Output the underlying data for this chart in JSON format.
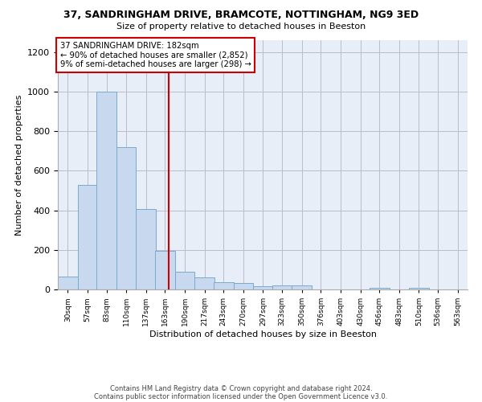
{
  "title1": "37, SANDRINGHAM DRIVE, BRAMCOTE, NOTTINGHAM, NG9 3ED",
  "title2": "Size of property relative to detached houses in Beeston",
  "xlabel": "Distribution of detached houses by size in Beeston",
  "ylabel": "Number of detached properties",
  "footnote1": "Contains HM Land Registry data © Crown copyright and database right 2024.",
  "footnote2": "Contains public sector information licensed under the Open Government Licence v3.0.",
  "annotation_line1": "37 SANDRINGHAM DRIVE: 182sqm",
  "annotation_line2": "← 90% of detached houses are smaller (2,852)",
  "annotation_line3": "9% of semi-detached houses are larger (298) →",
  "property_size": 182,
  "bar_color": "#c8d8ee",
  "bar_edge_color": "#7aabcc",
  "vline_color": "#cc0000",
  "annotation_box_color": "#cc0000",
  "background_color": "#e8eef8",
  "bins": [
    30,
    57,
    83,
    110,
    137,
    163,
    190,
    217,
    243,
    270,
    297,
    323,
    350,
    376,
    403,
    430,
    456,
    483,
    510,
    536,
    563
  ],
  "counts": [
    65,
    527,
    1000,
    718,
    408,
    197,
    88,
    60,
    37,
    33,
    18,
    20,
    20,
    0,
    0,
    0,
    10,
    0,
    10,
    0,
    0
  ],
  "ylim": [
    0,
    1260
  ],
  "yticks": [
    0,
    200,
    400,
    600,
    800,
    1000,
    1200
  ]
}
